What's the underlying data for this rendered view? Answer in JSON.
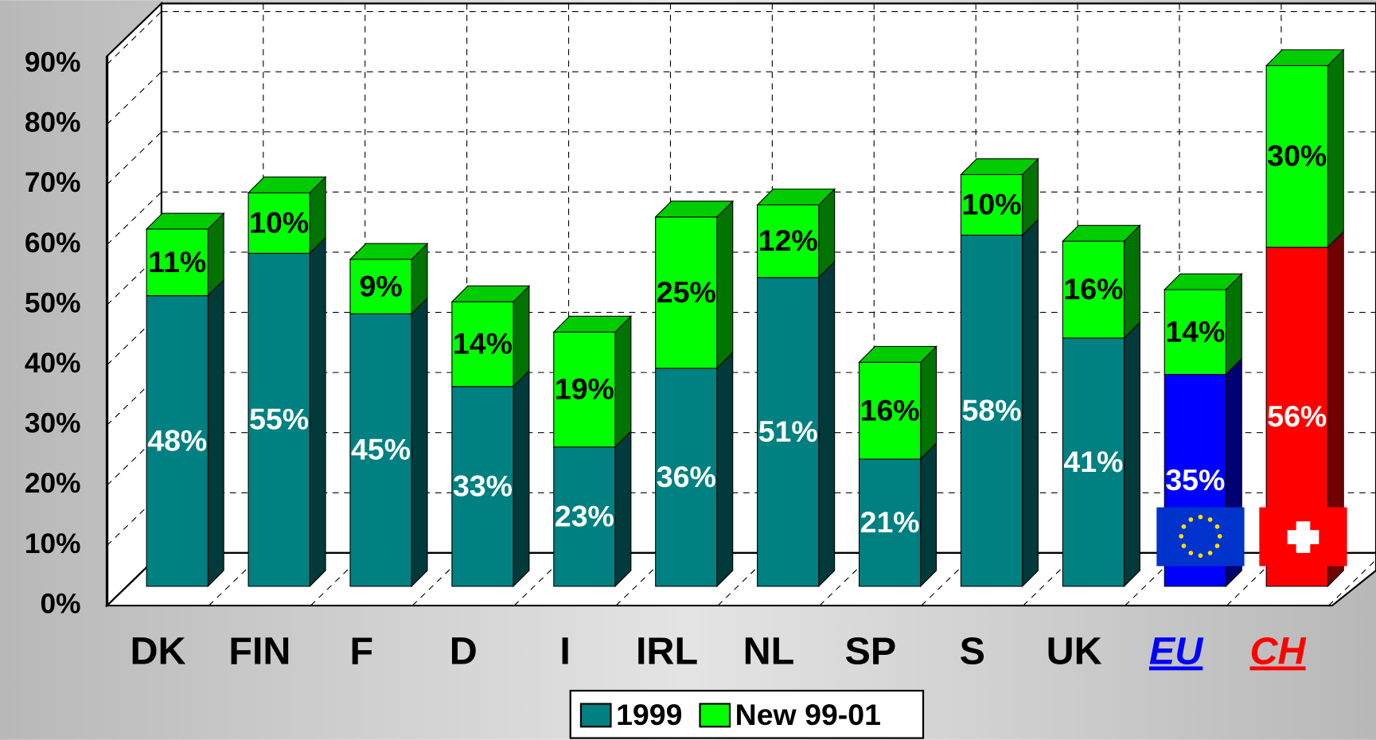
{
  "chart_data": {
    "type": "bar3d_stacked",
    "categories": [
      "DK",
      "FIN",
      "F",
      "D",
      "I",
      "IRL",
      "NL",
      "SP",
      "S",
      "UK",
      "EU",
      "CH"
    ],
    "category_colors": [
      "#000000",
      "#000000",
      "#000000",
      "#000000",
      "#000000",
      "#000000",
      "#000000",
      "#000000",
      "#000000",
      "#000000",
      "#0000ff",
      "#ff0000"
    ],
    "series": [
      {
        "name": "1999",
        "color": "#008080",
        "colors": [
          "#008080",
          "#008080",
          "#008080",
          "#008080",
          "#008080",
          "#008080",
          "#008080",
          "#008080",
          "#008080",
          "#008080",
          "#0000ff",
          "#ff0000"
        ],
        "values": [
          48,
          55,
          45,
          33,
          23,
          36,
          51,
          21,
          58,
          41,
          35,
          56
        ],
        "value_labels": [
          "48%",
          "55%",
          "45%",
          "33%",
          "23%",
          "36%",
          "51%",
          "21%",
          "58%",
          "41%",
          "35%",
          "56%"
        ]
      },
      {
        "name": "New 99-01",
        "color": "#00ff00",
        "values": [
          11,
          10,
          9,
          14,
          19,
          25,
          12,
          16,
          10,
          16,
          14,
          30
        ],
        "value_labels": [
          "11%",
          "10%",
          "9%",
          "14%",
          "19%",
          "25%",
          "12%",
          "16%",
          "10%",
          "16%",
          "14%",
          "30%"
        ]
      }
    ],
    "ylim": [
      0,
      90
    ],
    "yticks": [
      {
        "value": 0,
        "label": "0%"
      },
      {
        "value": 10,
        "label": "10%"
      },
      {
        "value": 20,
        "label": "20%"
      },
      {
        "value": 30,
        "label": "30%"
      },
      {
        "value": 40,
        "label": "40%"
      },
      {
        "value": 50,
        "label": "50%"
      },
      {
        "value": 60,
        "label": "60%"
      },
      {
        "value": 70,
        "label": "70%"
      },
      {
        "value": 80,
        "label": "80%"
      },
      {
        "value": 90,
        "label": "90%"
      }
    ],
    "grid": true,
    "legend": "bottom"
  }
}
